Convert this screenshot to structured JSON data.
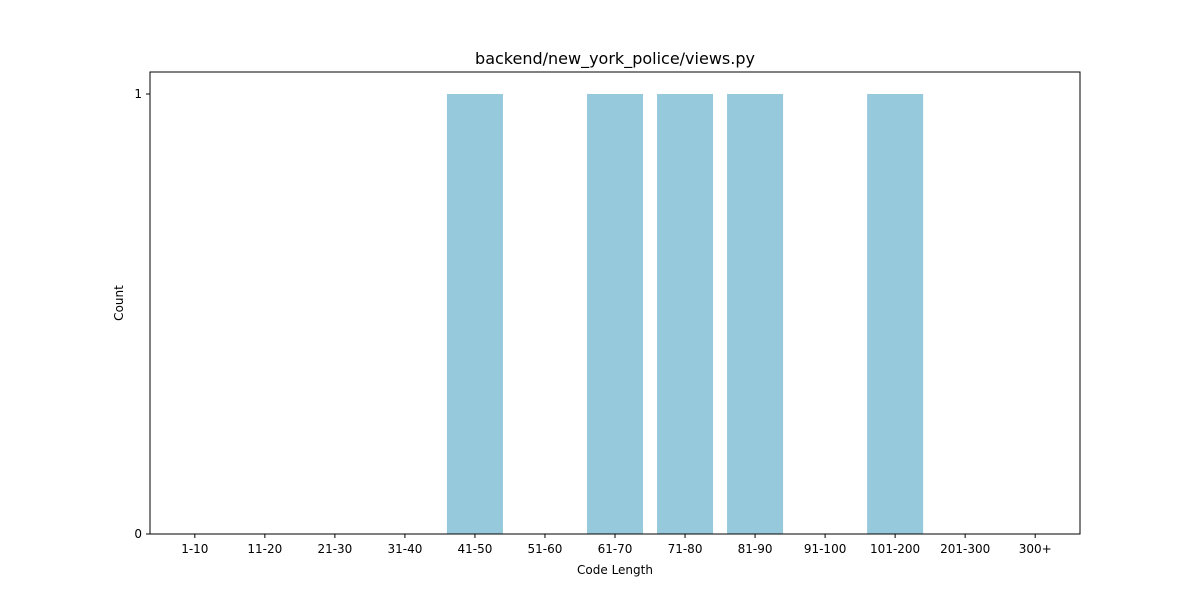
{
  "chart_data": {
    "type": "bar",
    "title": "backend/new_york_police/views.py",
    "xlabel": "Code Length",
    "ylabel": "Count",
    "categories": [
      "1-10",
      "11-20",
      "21-30",
      "31-40",
      "41-50",
      "51-60",
      "61-70",
      "71-80",
      "81-90",
      "91-100",
      "101-200",
      "201-300",
      "300+"
    ],
    "values": [
      0,
      0,
      0,
      0,
      1,
      0,
      1,
      1,
      1,
      0,
      1,
      0,
      0
    ],
    "ylim": [
      0,
      1.05
    ],
    "yticks": [
      0,
      1
    ],
    "bar_color": "#96c9dc",
    "grid": false,
    "legend": "none"
  }
}
